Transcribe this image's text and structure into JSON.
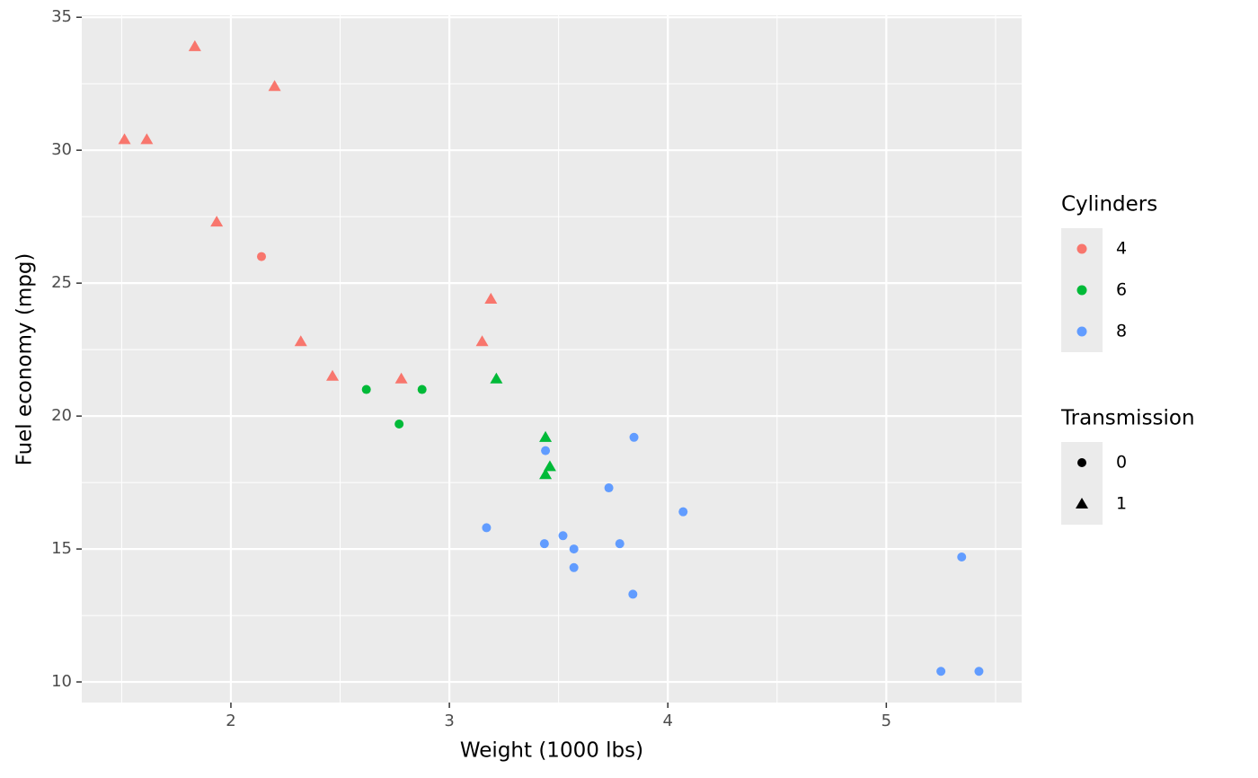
{
  "chart_data": {
    "type": "scatter",
    "x_label": "Weight (1000 lbs)",
    "y_label": "Fuel economy (mpg)",
    "xlim": [
      1.3174,
      5.6196
    ],
    "ylim": [
      9.225,
      35.075
    ],
    "xticks": [
      2,
      3,
      4,
      5
    ],
    "yticks": [
      10,
      15,
      20,
      25,
      30,
      35
    ],
    "xminor": [
      1.5,
      2.5,
      3.5,
      4.5,
      5.5
    ],
    "yminor": [
      12.5,
      17.5,
      22.5,
      27.5,
      32.5
    ],
    "grid": true,
    "color_legend_title": "Cylinders",
    "shape_legend_title": "Transmission",
    "shapes": [
      {
        "label": "0",
        "shape": "circle"
      },
      {
        "label": "1",
        "shape": "triangle"
      }
    ],
    "series": [
      {
        "name": "4",
        "color": "#F8766D",
        "x": [
          2.32,
          3.19,
          3.15,
          2.2,
          1.615,
          1.835,
          2.465,
          1.935,
          2.14,
          1.513,
          2.78
        ],
        "values": [
          22.8,
          24.4,
          22.8,
          32.4,
          30.4,
          33.9,
          21.5,
          27.3,
          26.0,
          30.4,
          21.4
        ],
        "transmission": [
          "1",
          "1",
          "1",
          "1",
          "1",
          "1",
          "1",
          "1",
          "0",
          "1",
          "1"
        ]
      },
      {
        "name": "6",
        "color": "#00BA38",
        "x": [
          2.62,
          2.875,
          3.215,
          3.46,
          3.44,
          3.44,
          2.77
        ],
        "values": [
          21.0,
          21.0,
          21.4,
          18.1,
          19.2,
          17.8,
          19.7
        ],
        "transmission": [
          "0",
          "0",
          "1",
          "1",
          "1",
          "1",
          "0"
        ]
      },
      {
        "name": "8",
        "color": "#619CFF",
        "x": [
          3.44,
          3.57,
          4.07,
          3.73,
          3.78,
          5.25,
          5.424,
          5.345,
          3.52,
          3.435,
          3.84,
          3.845,
          3.17,
          3.57
        ],
        "values": [
          18.7,
          14.3,
          16.4,
          17.3,
          15.2,
          10.4,
          10.4,
          14.7,
          15.5,
          15.2,
          13.3,
          19.2,
          15.8,
          15.0
        ],
        "transmission": [
          "0",
          "0",
          "0",
          "0",
          "0",
          "0",
          "0",
          "0",
          "0",
          "0",
          "0",
          "0",
          "0",
          "0"
        ]
      }
    ]
  }
}
